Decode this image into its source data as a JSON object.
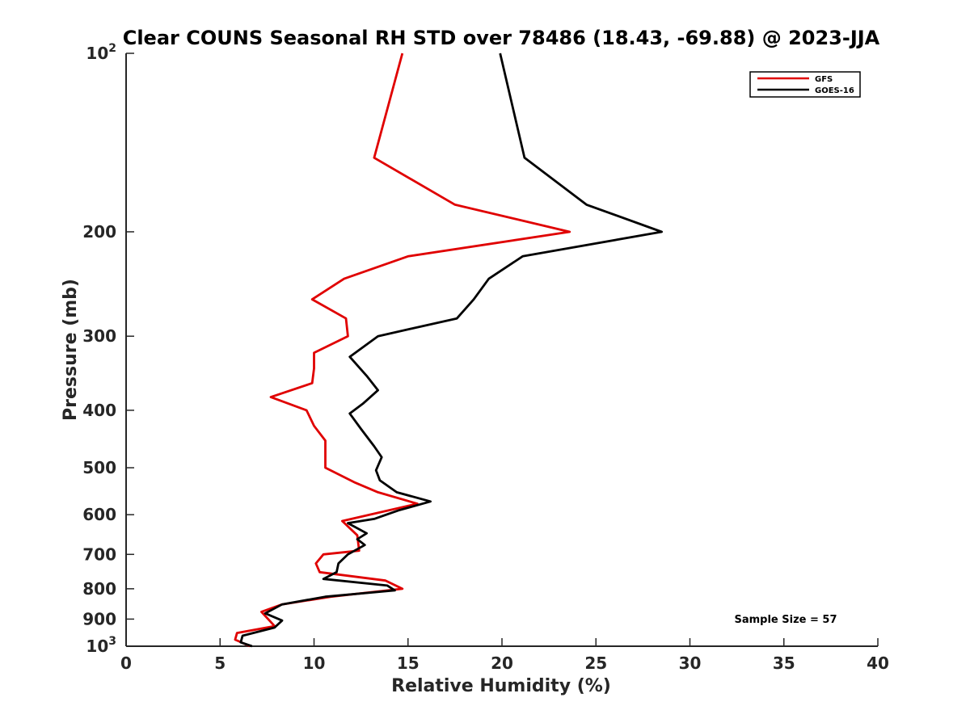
{
  "chart_data": {
    "type": "line",
    "title": "Clear COUNS Seasonal RH STD over 78486 (18.43, -69.88) @ 2023-JJA",
    "xlabel": "Relative Humidity (%)",
    "ylabel": "Pressure (mb)",
    "xlim": [
      0,
      40
    ],
    "ylim": [
      100,
      1000
    ],
    "yscale": "log",
    "yreversed": true,
    "xticks": [
      0,
      5,
      10,
      15,
      20,
      25,
      30,
      35,
      40
    ],
    "xtick_labels": [
      "0",
      "5",
      "10",
      "15",
      "20",
      "25",
      "30",
      "35",
      "40"
    ],
    "ytick_labels": [
      {
        "value": 100,
        "base": "10",
        "exp": "2"
      },
      {
        "value": 200,
        "text": "200"
      },
      {
        "value": 300,
        "text": "300"
      },
      {
        "value": 400,
        "text": "400"
      },
      {
        "value": 500,
        "text": "500"
      },
      {
        "value": 600,
        "text": "600"
      },
      {
        "value": 700,
        "text": "700"
      },
      {
        "value": 800,
        "text": "800"
      },
      {
        "value": 900,
        "text": "900"
      },
      {
        "value": 1000,
        "base": "10",
        "exp": "3"
      }
    ],
    "legend_position": "top-right",
    "annotation": "Sample Size = 57",
    "series": [
      {
        "name": "GFS",
        "color": "#e00000",
        "points": [
          [
            14.7,
            100
          ],
          [
            13.2,
            150
          ],
          [
            17.5,
            180
          ],
          [
            23.6,
            200
          ],
          [
            15.0,
            220
          ],
          [
            11.6,
            240
          ],
          [
            9.9,
            260
          ],
          [
            11.7,
            280
          ],
          [
            11.8,
            300
          ],
          [
            10.0,
            320
          ],
          [
            10.0,
            340
          ],
          [
            9.9,
            360
          ],
          [
            7.7,
            380
          ],
          [
            9.6,
            400
          ],
          [
            10.0,
            425
          ],
          [
            10.6,
            450
          ],
          [
            10.6,
            475
          ],
          [
            10.6,
            500
          ],
          [
            12.2,
            530
          ],
          [
            13.4,
            550
          ],
          [
            15.5,
            575
          ],
          [
            11.5,
            615
          ],
          [
            12.3,
            650
          ],
          [
            12.4,
            690
          ],
          [
            10.5,
            700
          ],
          [
            10.1,
            725
          ],
          [
            10.3,
            750
          ],
          [
            13.8,
            775
          ],
          [
            14.7,
            800
          ],
          [
            10.9,
            825
          ],
          [
            8.3,
            850
          ],
          [
            7.2,
            875
          ],
          [
            7.9,
            925
          ],
          [
            5.9,
            950
          ],
          [
            5.8,
            975
          ],
          [
            6.6,
            1000
          ]
        ]
      },
      {
        "name": "GOES-16",
        "color": "#000000",
        "points": [
          [
            19.9,
            100
          ],
          [
            21.2,
            150
          ],
          [
            24.5,
            180
          ],
          [
            28.5,
            200
          ],
          [
            21.1,
            220
          ],
          [
            19.3,
            240
          ],
          [
            18.5,
            260
          ],
          [
            17.6,
            280
          ],
          [
            13.4,
            300
          ],
          [
            11.9,
            325
          ],
          [
            12.8,
            350
          ],
          [
            13.4,
            370
          ],
          [
            12.6,
            390
          ],
          [
            11.9,
            405
          ],
          [
            12.5,
            430
          ],
          [
            13.2,
            460
          ],
          [
            13.6,
            480
          ],
          [
            13.3,
            505
          ],
          [
            13.5,
            525
          ],
          [
            14.4,
            550
          ],
          [
            16.2,
            570
          ],
          [
            14.5,
            590
          ],
          [
            13.2,
            610
          ],
          [
            11.8,
            620
          ],
          [
            12.8,
            645
          ],
          [
            12.3,
            660
          ],
          [
            12.7,
            675
          ],
          [
            11.8,
            700
          ],
          [
            11.3,
            725
          ],
          [
            11.2,
            750
          ],
          [
            10.5,
            770
          ],
          [
            13.9,
            790
          ],
          [
            14.3,
            805
          ],
          [
            10.6,
            825
          ],
          [
            8.3,
            850
          ],
          [
            7.4,
            880
          ],
          [
            8.3,
            905
          ],
          [
            7.9,
            930
          ],
          [
            6.2,
            960
          ],
          [
            6.1,
            985
          ],
          [
            6.7,
            1000
          ]
        ]
      }
    ]
  }
}
